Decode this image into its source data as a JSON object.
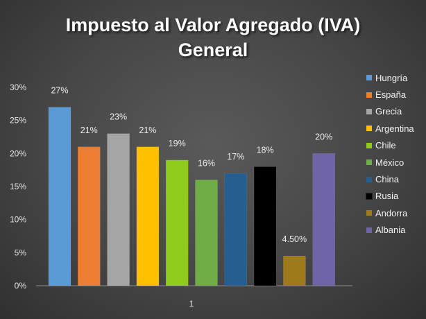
{
  "chart_data": {
    "type": "bar",
    "title_lines": [
      "Impuesto al Valor Agregado (IVA)",
      "General"
    ],
    "categories": [
      "1"
    ],
    "series": [
      {
        "name": "Hungría",
        "value": 27,
        "label": "27%",
        "color": "#5b9bd5"
      },
      {
        "name": "España",
        "value": 21,
        "label": "21%",
        "color": "#ed7d31"
      },
      {
        "name": "Grecia",
        "value": 23,
        "label": "23%",
        "color": "#a5a5a5"
      },
      {
        "name": "Argentina",
        "value": 21,
        "label": "21%",
        "color": "#ffc000"
      },
      {
        "name": "Chile",
        "value": 19,
        "label": "19%",
        "color": "#8fcc1a"
      },
      {
        "name": "México",
        "value": 16,
        "label": "16%",
        "color": "#70ad47"
      },
      {
        "name": "China",
        "value": 17,
        "label": "17%",
        "color": "#255e91"
      },
      {
        "name": "Rusia",
        "value": 18,
        "label": "18%",
        "color": "#000000"
      },
      {
        "name": "Andorra",
        "value": 4.5,
        "label": "4.50%",
        "color": "#9e7a1c"
      },
      {
        "name": "Albania",
        "value": 20,
        "label": "20%",
        "color": "#6f64a6"
      }
    ],
    "y_ticks": [
      "0%",
      "5%",
      "10%",
      "15%",
      "20%",
      "25%",
      "30%"
    ],
    "ylim": [
      0,
      30
    ],
    "legend_position": "right",
    "grid": false
  }
}
